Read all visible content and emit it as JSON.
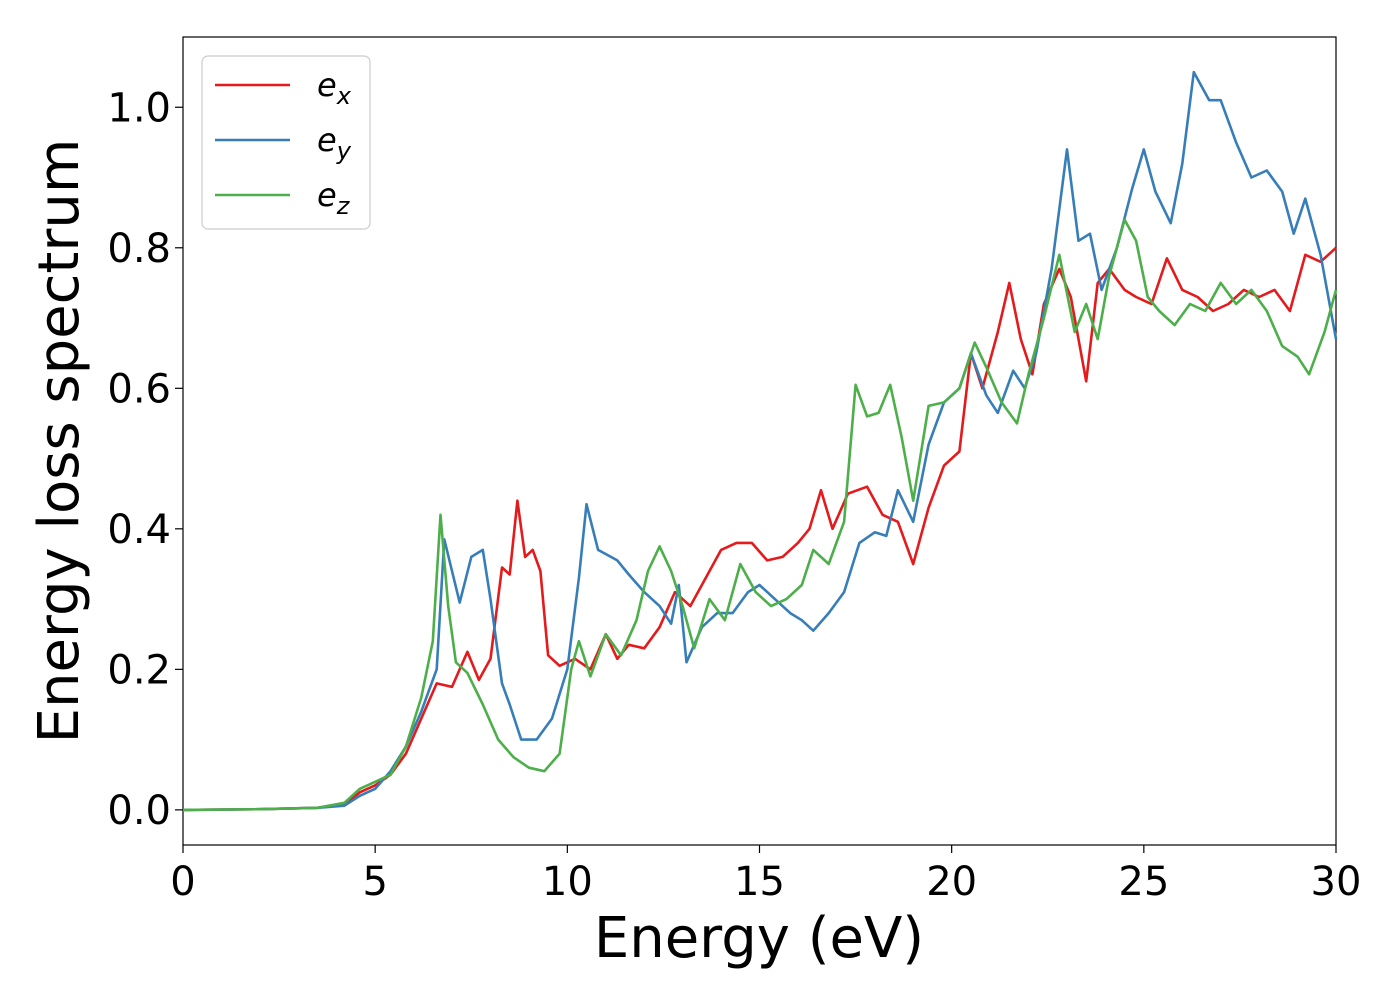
{
  "chart_data": {
    "type": "line",
    "xlabel": "Energy (eV)",
    "ylabel": "Energy loss spectrum",
    "xlim": [
      0,
      30
    ],
    "ylim": [
      -0.05,
      1.1
    ],
    "xticks": [
      "0",
      "5",
      "10",
      "15",
      "20",
      "25",
      "30"
    ],
    "yticks": [
      "0.0",
      "0.2",
      "0.4",
      "0.6",
      "0.8",
      "1.0"
    ],
    "grid": false,
    "legend_position": "top-left",
    "series": [
      {
        "name": "e",
        "subscript": "x",
        "color": "#e41a1c",
        "points": [
          [
            0,
            0
          ],
          [
            2,
            0.001
          ],
          [
            3.5,
            0.003
          ],
          [
            4.2,
            0.008
          ],
          [
            4.6,
            0.025
          ],
          [
            5.0,
            0.035
          ],
          [
            5.4,
            0.05
          ],
          [
            5.8,
            0.08
          ],
          [
            6.2,
            0.13
          ],
          [
            6.6,
            0.18
          ],
          [
            7.0,
            0.175
          ],
          [
            7.4,
            0.225
          ],
          [
            7.7,
            0.185
          ],
          [
            8.0,
            0.215
          ],
          [
            8.3,
            0.345
          ],
          [
            8.5,
            0.335
          ],
          [
            8.7,
            0.44
          ],
          [
            8.9,
            0.36
          ],
          [
            9.1,
            0.37
          ],
          [
            9.3,
            0.34
          ],
          [
            9.5,
            0.22
          ],
          [
            9.8,
            0.205
          ],
          [
            10.2,
            0.215
          ],
          [
            10.6,
            0.2
          ],
          [
            11.0,
            0.25
          ],
          [
            11.3,
            0.215
          ],
          [
            11.6,
            0.235
          ],
          [
            12.0,
            0.23
          ],
          [
            12.4,
            0.26
          ],
          [
            12.8,
            0.31
          ],
          [
            13.2,
            0.29
          ],
          [
            13.6,
            0.33
          ],
          [
            14.0,
            0.37
          ],
          [
            14.4,
            0.38
          ],
          [
            14.8,
            0.38
          ],
          [
            15.2,
            0.355
          ],
          [
            15.6,
            0.36
          ],
          [
            16.0,
            0.38
          ],
          [
            16.3,
            0.4
          ],
          [
            16.6,
            0.455
          ],
          [
            16.9,
            0.4
          ],
          [
            17.3,
            0.45
          ],
          [
            17.8,
            0.46
          ],
          [
            18.2,
            0.42
          ],
          [
            18.6,
            0.41
          ],
          [
            19.0,
            0.35
          ],
          [
            19.4,
            0.43
          ],
          [
            19.8,
            0.49
          ],
          [
            20.2,
            0.51
          ],
          [
            20.5,
            0.65
          ],
          [
            20.8,
            0.6
          ],
          [
            21.2,
            0.68
          ],
          [
            21.5,
            0.75
          ],
          [
            21.8,
            0.67
          ],
          [
            22.1,
            0.62
          ],
          [
            22.4,
            0.72
          ],
          [
            22.8,
            0.77
          ],
          [
            23.1,
            0.73
          ],
          [
            23.5,
            0.61
          ],
          [
            23.8,
            0.75
          ],
          [
            24.1,
            0.77
          ],
          [
            24.5,
            0.74
          ],
          [
            24.8,
            0.73
          ],
          [
            25.2,
            0.72
          ],
          [
            25.6,
            0.785
          ],
          [
            26.0,
            0.74
          ],
          [
            26.4,
            0.73
          ],
          [
            26.8,
            0.71
          ],
          [
            27.2,
            0.72
          ],
          [
            27.6,
            0.74
          ],
          [
            28.0,
            0.73
          ],
          [
            28.4,
            0.74
          ],
          [
            28.8,
            0.71
          ],
          [
            29.2,
            0.79
          ],
          [
            29.6,
            0.78
          ],
          [
            30.0,
            0.8
          ]
        ]
      },
      {
        "name": "e",
        "subscript": "y",
        "color": "#377eb8",
        "points": [
          [
            0,
            0
          ],
          [
            2,
            0.001
          ],
          [
            3.5,
            0.003
          ],
          [
            4.2,
            0.006
          ],
          [
            4.6,
            0.02
          ],
          [
            5.0,
            0.03
          ],
          [
            5.4,
            0.055
          ],
          [
            5.8,
            0.09
          ],
          [
            6.2,
            0.14
          ],
          [
            6.6,
            0.2
          ],
          [
            6.8,
            0.385
          ],
          [
            7.0,
            0.34
          ],
          [
            7.2,
            0.295
          ],
          [
            7.5,
            0.36
          ],
          [
            7.8,
            0.37
          ],
          [
            8.0,
            0.3
          ],
          [
            8.3,
            0.18
          ],
          [
            8.5,
            0.15
          ],
          [
            8.8,
            0.1
          ],
          [
            9.2,
            0.1
          ],
          [
            9.6,
            0.13
          ],
          [
            10.0,
            0.2
          ],
          [
            10.3,
            0.33
          ],
          [
            10.5,
            0.435
          ],
          [
            10.8,
            0.37
          ],
          [
            11.3,
            0.355
          ],
          [
            11.6,
            0.335
          ],
          [
            12.0,
            0.31
          ],
          [
            12.4,
            0.29
          ],
          [
            12.7,
            0.265
          ],
          [
            12.9,
            0.32
          ],
          [
            13.1,
            0.21
          ],
          [
            13.5,
            0.26
          ],
          [
            13.9,
            0.28
          ],
          [
            14.3,
            0.28
          ],
          [
            14.7,
            0.31
          ],
          [
            15.0,
            0.32
          ],
          [
            15.4,
            0.3
          ],
          [
            15.8,
            0.28
          ],
          [
            16.1,
            0.27
          ],
          [
            16.4,
            0.255
          ],
          [
            16.8,
            0.28
          ],
          [
            17.2,
            0.31
          ],
          [
            17.6,
            0.38
          ],
          [
            18.0,
            0.395
          ],
          [
            18.3,
            0.39
          ],
          [
            18.6,
            0.455
          ],
          [
            19.0,
            0.41
          ],
          [
            19.4,
            0.52
          ],
          [
            19.8,
            0.58
          ],
          [
            20.2,
            0.6
          ],
          [
            20.5,
            0.65
          ],
          [
            20.9,
            0.59
          ],
          [
            21.2,
            0.565
          ],
          [
            21.6,
            0.625
          ],
          [
            21.9,
            0.6
          ],
          [
            22.2,
            0.65
          ],
          [
            22.6,
            0.77
          ],
          [
            23.0,
            0.94
          ],
          [
            23.3,
            0.81
          ],
          [
            23.6,
            0.82
          ],
          [
            23.9,
            0.74
          ],
          [
            24.3,
            0.8
          ],
          [
            24.7,
            0.885
          ],
          [
            25.0,
            0.94
          ],
          [
            25.3,
            0.88
          ],
          [
            25.7,
            0.835
          ],
          [
            26.0,
            0.92
          ],
          [
            26.3,
            1.05
          ],
          [
            26.7,
            1.01
          ],
          [
            27.0,
            1.01
          ],
          [
            27.4,
            0.95
          ],
          [
            27.8,
            0.9
          ],
          [
            28.2,
            0.91
          ],
          [
            28.6,
            0.88
          ],
          [
            28.9,
            0.82
          ],
          [
            29.2,
            0.87
          ],
          [
            29.6,
            0.79
          ],
          [
            30.0,
            0.67
          ]
        ]
      },
      {
        "name": "e",
        "subscript": "z",
        "color": "#4daf4a",
        "points": [
          [
            0,
            0
          ],
          [
            2,
            0.001
          ],
          [
            3.5,
            0.003
          ],
          [
            4.2,
            0.01
          ],
          [
            4.6,
            0.03
          ],
          [
            5.0,
            0.04
          ],
          [
            5.4,
            0.05
          ],
          [
            5.8,
            0.09
          ],
          [
            6.2,
            0.16
          ],
          [
            6.5,
            0.24
          ],
          [
            6.7,
            0.42
          ],
          [
            6.9,
            0.29
          ],
          [
            7.1,
            0.21
          ],
          [
            7.4,
            0.195
          ],
          [
            7.8,
            0.15
          ],
          [
            8.2,
            0.1
          ],
          [
            8.6,
            0.075
          ],
          [
            9.0,
            0.06
          ],
          [
            9.4,
            0.055
          ],
          [
            9.8,
            0.08
          ],
          [
            10.1,
            0.2
          ],
          [
            10.3,
            0.24
          ],
          [
            10.6,
            0.19
          ],
          [
            11.0,
            0.25
          ],
          [
            11.4,
            0.22
          ],
          [
            11.8,
            0.27
          ],
          [
            12.1,
            0.34
          ],
          [
            12.4,
            0.375
          ],
          [
            12.7,
            0.34
          ],
          [
            13.0,
            0.29
          ],
          [
            13.3,
            0.23
          ],
          [
            13.7,
            0.3
          ],
          [
            14.1,
            0.27
          ],
          [
            14.5,
            0.35
          ],
          [
            14.9,
            0.31
          ],
          [
            15.3,
            0.29
          ],
          [
            15.7,
            0.3
          ],
          [
            16.1,
            0.32
          ],
          [
            16.4,
            0.37
          ],
          [
            16.8,
            0.35
          ],
          [
            17.2,
            0.41
          ],
          [
            17.5,
            0.605
          ],
          [
            17.8,
            0.56
          ],
          [
            18.1,
            0.565
          ],
          [
            18.4,
            0.605
          ],
          [
            18.7,
            0.53
          ],
          [
            19.0,
            0.44
          ],
          [
            19.4,
            0.575
          ],
          [
            19.8,
            0.58
          ],
          [
            20.2,
            0.6
          ],
          [
            20.6,
            0.665
          ],
          [
            20.9,
            0.63
          ],
          [
            21.3,
            0.58
          ],
          [
            21.7,
            0.55
          ],
          [
            22.0,
            0.62
          ],
          [
            22.4,
            0.7
          ],
          [
            22.8,
            0.79
          ],
          [
            23.2,
            0.68
          ],
          [
            23.5,
            0.72
          ],
          [
            23.8,
            0.67
          ],
          [
            24.1,
            0.76
          ],
          [
            24.5,
            0.84
          ],
          [
            24.8,
            0.81
          ],
          [
            25.1,
            0.73
          ],
          [
            25.4,
            0.71
          ],
          [
            25.8,
            0.69
          ],
          [
            26.2,
            0.72
          ],
          [
            26.6,
            0.71
          ],
          [
            27.0,
            0.75
          ],
          [
            27.4,
            0.72
          ],
          [
            27.8,
            0.74
          ],
          [
            28.2,
            0.71
          ],
          [
            28.6,
            0.66
          ],
          [
            29.0,
            0.645
          ],
          [
            29.3,
            0.62
          ],
          [
            29.7,
            0.68
          ],
          [
            30.0,
            0.74
          ]
        ]
      }
    ]
  }
}
